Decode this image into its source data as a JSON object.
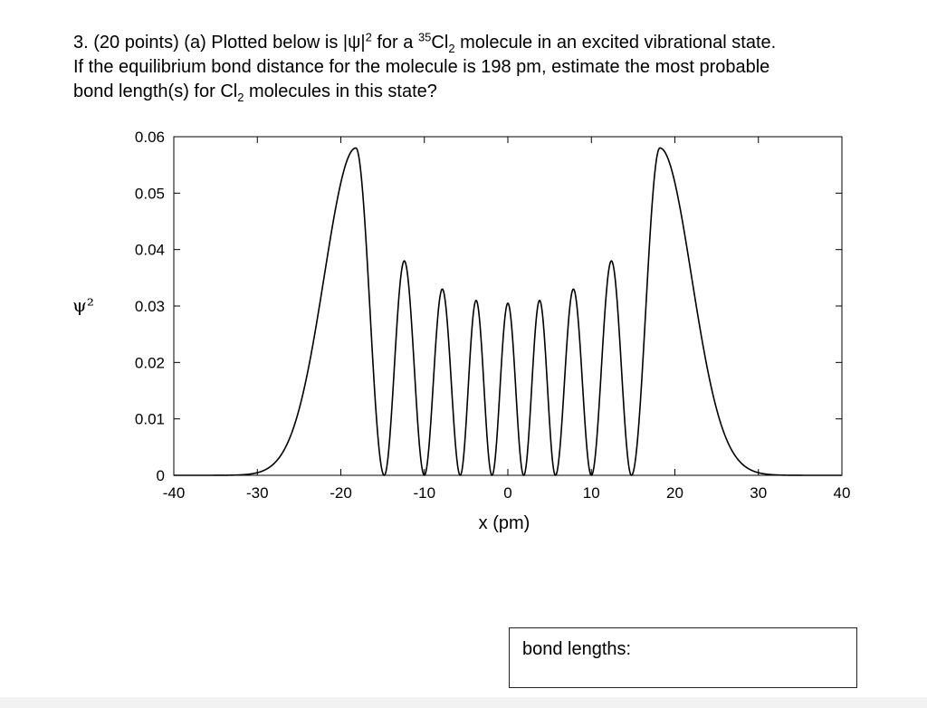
{
  "question": {
    "line1_a": "3. (20 points) (a) Plotted below is |ψ|",
    "line1_sup1": "2",
    "line1_b": " for a ",
    "line1_sup2": "35",
    "line1_c": "Cl",
    "line1_sub1": "2",
    "line1_d": " molecule in an excited vibrational state.",
    "line2": "If the equilibrium bond distance for the molecule is 198 pm, estimate the most probable",
    "line3_a": "bond length(s) for Cl",
    "line3_sub": "2",
    "line3_b": " molecules in this state?"
  },
  "chart_data": {
    "type": "line",
    "xlabel": "x (pm)",
    "ylabel": "ψ²",
    "xlim": [
      -40,
      40
    ],
    "ylim": [
      0,
      0.06
    ],
    "xticks": [
      "-40",
      "-30",
      "-20",
      "-10",
      "0",
      "10",
      "20",
      "30",
      "40"
    ],
    "yticks": [
      "0",
      "0.01",
      "0.02",
      "0.03",
      "0.04",
      "0.05",
      "0.06"
    ],
    "grid": false,
    "series": [
      {
        "color": "#000000",
        "peaks_x": [
          -18.2,
          -12.3,
          -7.7,
          -3.7,
          0,
          3.7,
          7.7,
          12.3,
          18.2
        ],
        "peaks_y": [
          0.058,
          0.038,
          0.033,
          0.031,
          0.0305,
          0.031,
          0.033,
          0.038,
          0.058
        ],
        "nodes_x": [
          -14.8,
          -10.0,
          -5.7,
          -1.9,
          1.9,
          5.7,
          10.0,
          14.8
        ]
      }
    ]
  },
  "answer": {
    "label": "bond lengths:",
    "value": ""
  }
}
